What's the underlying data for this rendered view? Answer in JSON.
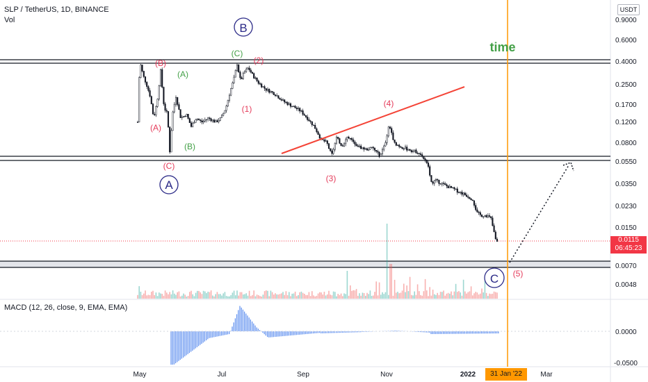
{
  "header": {
    "symbol": "SLP / TetherUS, 1D, BINANCE",
    "volume_label": "Vol",
    "currency_badge": "USDT"
  },
  "price_axis": {
    "labels": [
      "0.9000",
      "0.6000",
      "0.4000",
      "0.2500",
      "0.1700",
      "0.1200",
      "0.0800",
      "0.0550",
      "0.0350",
      "0.0230",
      "0.0150",
      "0.0070",
      "0.0048"
    ]
  },
  "time_axis": {
    "labels": [
      "May",
      "Jul",
      "Sep",
      "Nov",
      "2022",
      "Mar"
    ],
    "cursor_label": "31 Jan '22"
  },
  "last_price": {
    "value": "0.0115",
    "countdown": "06:45:23"
  },
  "macd": {
    "label": "MACD (12, 26, close, 9, EMA, EMA)",
    "axis_labels": [
      "0.0000",
      "-0.0500"
    ]
  },
  "annotations": {
    "time_note": "time",
    "major_waves": [
      "A",
      "B",
      "C"
    ],
    "red_labels": [
      "(B)",
      "(A)",
      "(C)",
      "(2)",
      "(1)",
      "(3)",
      "(4)",
      "(5)"
    ],
    "green_labels": [
      "(A)",
      "(B)",
      "(C)"
    ]
  },
  "colors": {
    "bullish": "#26a69a",
    "bearish": "#ef5350",
    "wave_red": "#e53b5a",
    "wave_green": "#43a047",
    "wave_circle": "#2b2a87",
    "trendline": "#f44336",
    "time_line": "#ff9800",
    "macd_bars": "#5b8def"
  },
  "chart_data": {
    "type": "line",
    "title": "SLP / TetherUS, 1D, BINANCE",
    "x_ticks": [
      "May",
      "Jul",
      "Sep",
      "Nov",
      "2022",
      "Mar"
    ],
    "y_scale": "log",
    "y_ticks": [
      0.9,
      0.6,
      0.4,
      0.25,
      0.17,
      0.12,
      0.08,
      0.055,
      0.035,
      0.023,
      0.015,
      0.007,
      0.0048
    ],
    "series": [
      {
        "x": [
          "May",
          "mid-May",
          "Jun",
          "mid-Jun",
          "Jul",
          "mid-Jul",
          "Aug",
          "mid-Aug",
          "Sep",
          "mid-Sep",
          "Oct",
          "mid-Oct",
          "Nov",
          "mid-Nov",
          "Dec",
          "mid-Dec",
          "Jan",
          "mid-Jan"
        ],
        "values": [
          0.35,
          0.12,
          0.11,
          0.12,
          0.25,
          0.35,
          0.25,
          0.18,
          0.12,
          0.085,
          0.085,
          0.075,
          0.07,
          0.075,
          0.06,
          0.035,
          0.025,
          0.0115
        ]
      }
    ],
    "last_price": 0.0115
  }
}
